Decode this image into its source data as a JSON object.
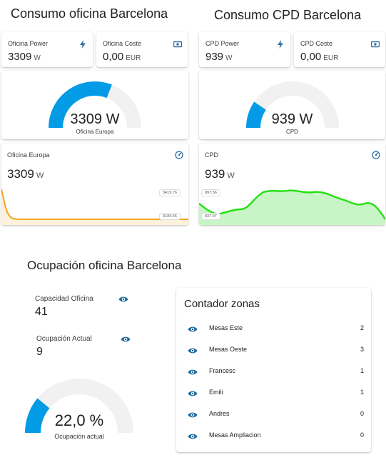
{
  "colors": {
    "gauge_blue": "#039be5",
    "gauge_track": "#f1f1f1",
    "icon_blue": "#2f6fa6",
    "oficina_line": "#f2a51f",
    "cpd_line": "#22e010",
    "cpd_fill": "#c8f5c6"
  },
  "sections": {
    "oficina_title": "Consumo oficina Barcelona",
    "cpd_title": "Consumo CPD Barcelona",
    "ocupacion_title": "Ocupación oficina Barcelona"
  },
  "oficina": {
    "power": {
      "name": "Oficina Power",
      "value": "3309",
      "unit": "W",
      "icon": "flash-icon"
    },
    "coste": {
      "name": "Oficina Coste",
      "value": "0,00",
      "unit": "EUR",
      "icon": "cash-icon"
    },
    "gauge": {
      "value_text": "3309 W",
      "label": "Oficina Europa",
      "fraction": 0.62
    },
    "graph": {
      "name": "Oficina Europa",
      "value": "3309",
      "unit": "W",
      "icon": "gauge-icon",
      "max_label": "3419.76",
      "min_label": "3184.65"
    }
  },
  "cpd": {
    "power": {
      "name": "CPD Power",
      "value": "939",
      "unit": "W",
      "icon": "flash-icon"
    },
    "coste": {
      "name": "CPD Coste",
      "value": "0,00",
      "unit": "EUR",
      "icon": "cash-icon"
    },
    "gauge": {
      "value_text": "939 W",
      "label": "CPD",
      "fraction": 0.19
    },
    "graph": {
      "name": "CPD",
      "value": "939",
      "unit": "W",
      "icon": "gauge-icon",
      "max_label": "997.56",
      "min_label": "937.07"
    }
  },
  "ocupacion": {
    "capacidad": {
      "label": "Capacidad Oficina",
      "value": "41",
      "icon": "eye-icon"
    },
    "actual": {
      "label": "Ocupación Actual",
      "value": "9",
      "icon": "eye-icon"
    },
    "gauge": {
      "value_text": "22,0 %",
      "label": "Ocupación actual",
      "fraction": 0.22
    }
  },
  "zonas": {
    "title": "Contador zonas",
    "items": [
      {
        "name": "Mesas Este",
        "count": "2",
        "icon": "eye-icon"
      },
      {
        "name": "Mesas Oeste",
        "count": "3",
        "icon": "eye-icon"
      },
      {
        "name": "Francesc",
        "count": "1",
        "icon": "eye-icon"
      },
      {
        "name": "Emili",
        "count": "1",
        "icon": "eye-icon"
      },
      {
        "name": "Andres",
        "count": "0",
        "icon": "eye-icon"
      },
      {
        "name": "Mesas Ampliacion",
        "count": "0",
        "icon": "eye-icon"
      }
    ]
  }
}
